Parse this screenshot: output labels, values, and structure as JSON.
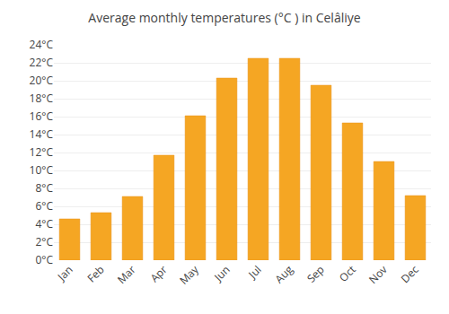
{
  "chart_data": {
    "type": "bar",
    "title": "Average monthly temperatures (°C ) in Celâliye",
    "categories": [
      "Jan",
      "Feb",
      "Mar",
      "Apr",
      "May",
      "Jun",
      "Jul",
      "Aug",
      "Sep",
      "Oct",
      "Nov",
      "Dec"
    ],
    "values": [
      4.6,
      5.3,
      7.1,
      11.7,
      16.1,
      20.3,
      22.5,
      22.5,
      19.5,
      15.3,
      11.0,
      7.2
    ],
    "color": "#F5A623",
    "ylim": [
      0,
      24
    ],
    "yticks": [
      {
        "value": 0,
        "label": "0°C"
      },
      {
        "value": 2,
        "label": "2°C"
      },
      {
        "value": 4,
        "label": "4°C"
      },
      {
        "value": 6,
        "label": "6°C"
      },
      {
        "value": 8,
        "label": "8°C"
      },
      {
        "value": 10,
        "label": "10°C"
      },
      {
        "value": 12,
        "label": "12°C"
      },
      {
        "value": 14,
        "label": "14°C"
      },
      {
        "value": 16,
        "label": "16°C"
      },
      {
        "value": 18,
        "label": "18°C"
      },
      {
        "value": 20,
        "label": "20°C"
      },
      {
        "value": 22,
        "label": "22°C"
      },
      {
        "value": 24,
        "label": "24°C"
      }
    ],
    "grid": true
  }
}
